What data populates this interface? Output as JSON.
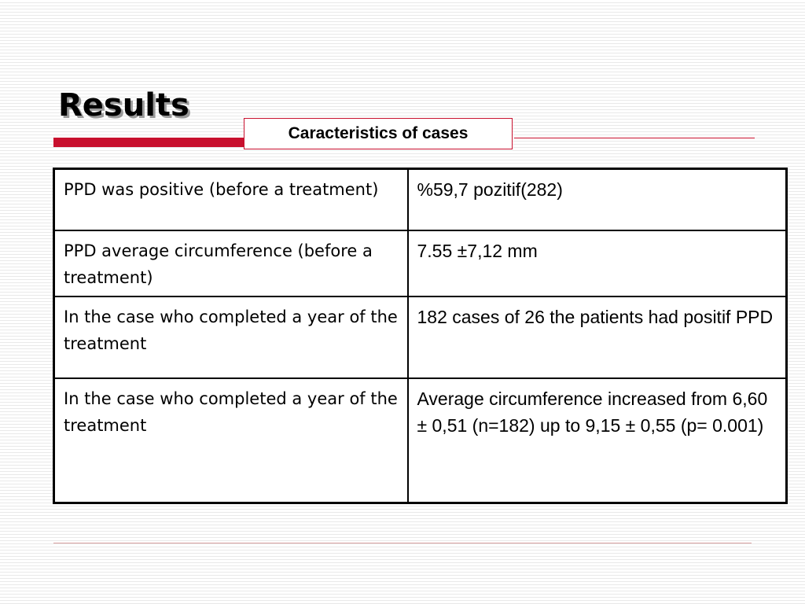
{
  "slide": {
    "title": "Results",
    "subtitle": "Caracteristics of cases"
  },
  "table": {
    "rows": [
      {
        "label": "PPD  was positive (before a treatment)",
        "value": "%59,7 pozitif(282)"
      },
      {
        "label": "PPD average circumference (before a treatment)",
        "value": "7.55 ±7,12 mm"
      },
      {
        "label": "In the case who completed a year of the treatment",
        "value": "182 cases of 26 the patients had positif  PPD"
      },
      {
        "label": "In the case who completed a year of the treatment",
        "value": "Average circumference increased from  6,60 ± 0,51 (n=182)  up to 9,15  ± 0,55 (p= 0.001)"
      }
    ]
  },
  "colors": {
    "accent": "#c8102e",
    "text": "#000000",
    "background": "#ffffff"
  }
}
